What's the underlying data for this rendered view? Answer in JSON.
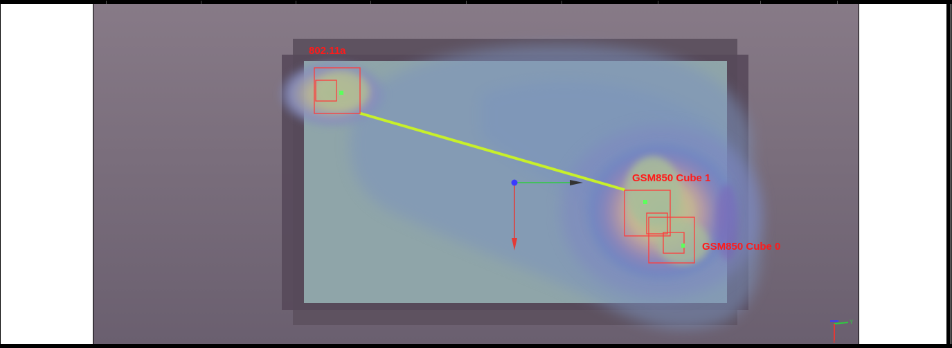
{
  "scene": {
    "access_points": [
      {
        "label": "802.11a"
      },
      {
        "label": "GSM850 Cube 1"
      },
      {
        "label": "GSM850 Cube 0"
      }
    ],
    "colors": {
      "label": "#ff1a1a",
      "link_line": "#c8f02a",
      "ap_marker": "#5cff5c",
      "axis_x": "#2ecc40",
      "axis_y": "#e53935",
      "axis_origin": "#3a3aff",
      "floor_plan": "#8fa5a9",
      "background": "#7a6e7c"
    },
    "orientation_gizmo": {
      "axis_label": "Y"
    }
  }
}
